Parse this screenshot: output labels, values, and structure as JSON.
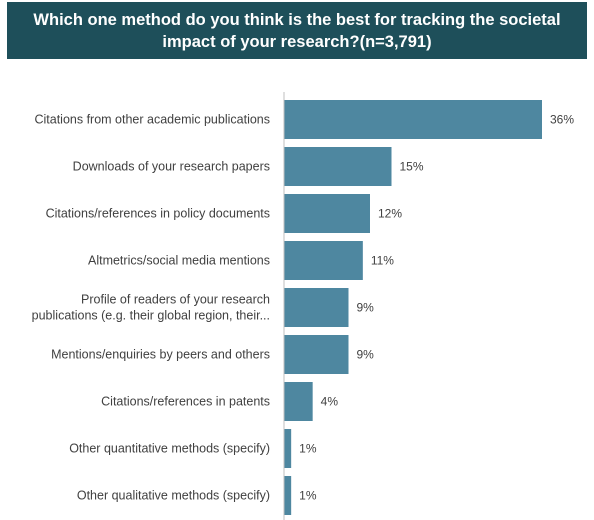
{
  "chart_data": {
    "type": "bar",
    "orientation": "horizontal",
    "title": "Which one method do you think is the best for tracking the societal impact of your research?(n=3,791)",
    "categories": [
      [
        "Citations from other academic publications"
      ],
      [
        "Downloads of your research papers"
      ],
      [
        "Citations/references in policy documents"
      ],
      [
        "Altmetrics/social media mentions"
      ],
      [
        "Profile of readers of your research",
        "publications (e.g. their global region, their..."
      ],
      [
        "Mentions/enquiries by peers and others"
      ],
      [
        "Citations/references in patents"
      ],
      [
        "Other quantitative methods (specify)"
      ],
      [
        "Other qualitative methods (specify)"
      ]
    ],
    "values": [
      36,
      15,
      12,
      11,
      9,
      9,
      4,
      1,
      1
    ],
    "value_labels": [
      "36%",
      "15%",
      "12%",
      "11%",
      "9%",
      "9%",
      "4%",
      "1%",
      "1%"
    ],
    "unit": "%",
    "xlim": [
      0,
      36
    ],
    "bar_color": "#4e87a0",
    "title_bg_color": "#1e4f5a",
    "axis_color": "#bfbfbf",
    "grid": false,
    "legend": false
  }
}
